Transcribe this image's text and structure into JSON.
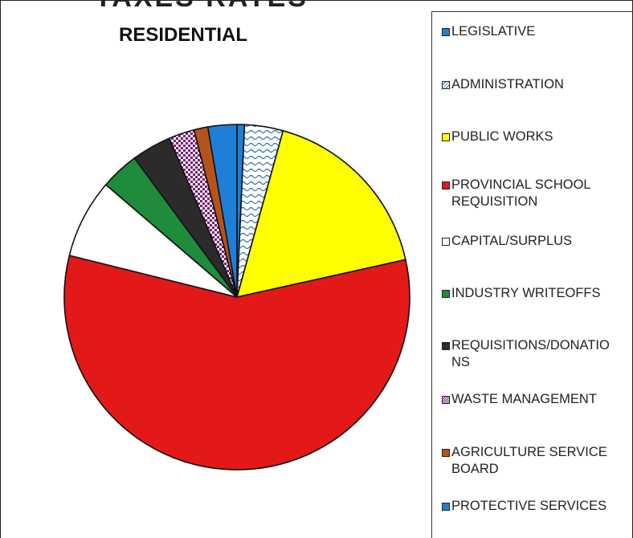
{
  "header_fragment": "TAXES RATES",
  "chart_data": {
    "type": "pie",
    "title": "RESIDENTIAL",
    "legend_placement": "right",
    "slices": [
      {
        "label": "LEGISLATIVE",
        "value": 0.7,
        "color": "#1f7fd6",
        "pattern": "solid"
      },
      {
        "label": "ADMINISTRATION",
        "value": 3.6,
        "color": "#ffffff",
        "pattern": "wave"
      },
      {
        "label": "PUBLIC WORKS",
        "value": 17.2,
        "color": "#ffff00",
        "pattern": "solid"
      },
      {
        "label": "PROVINCIAL SCHOOL REQUISITION",
        "value": 57.3,
        "color": "#e31818",
        "pattern": "solid"
      },
      {
        "label": "CAPITAL/SURPLUS",
        "value": 7.4,
        "color": "#ffffff",
        "pattern": "solid"
      },
      {
        "label": "INDUSTRY WRITEOFFS",
        "value": 3.6,
        "color": "#1e8c3a",
        "pattern": "solid"
      },
      {
        "label": "REQUISITIONS/DONATIONS",
        "value": 3.7,
        "color": "#2b2b2b",
        "pattern": "solid"
      },
      {
        "label": "WASTE MANAGEMENT",
        "value": 2.4,
        "color": "#ffffff",
        "pattern": "dots"
      },
      {
        "label": "AGRICULTURE SERVICE BOARD",
        "value": 1.3,
        "color": "#b5531c",
        "pattern": "solid"
      },
      {
        "label": "PROTECTIVE SERVICES",
        "value": 2.7,
        "color": "#1f7fd6",
        "pattern": "solid"
      }
    ]
  },
  "legend_display": [
    [
      "LEGISLATIVE"
    ],
    [
      "ADMINISTRATION"
    ],
    [
      "PUBLIC WORKS"
    ],
    [
      "PROVINCIAL SCHOOL",
      "REQUISITION"
    ],
    [
      "CAPITAL/SURPLUS"
    ],
    [
      "INDUSTRY WRITEOFFS"
    ],
    [
      "REQUISITIONS/DONATIO",
      "NS"
    ],
    [
      "WASTE MANAGEMENT"
    ],
    [
      "AGRICULTURE SERVICE",
      "BOARD"
    ],
    [
      "PROTECTIVE SERVICES"
    ]
  ]
}
